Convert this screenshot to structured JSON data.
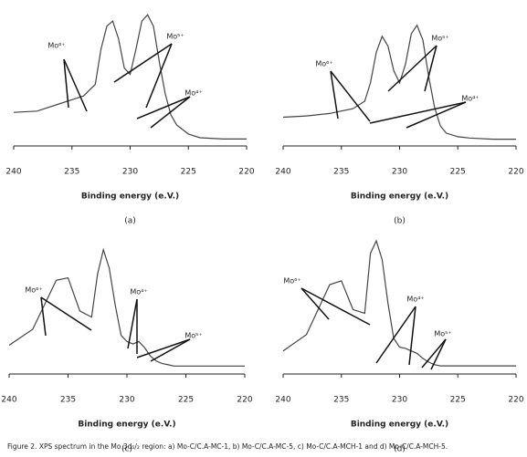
{
  "chart_data": [
    {
      "type": "line",
      "x_label": "Binding energy (e.V.)",
      "panel_label": "(a)",
      "annotations": [
        "Mo⁶⁺",
        "Mo⁵⁺",
        "Mo⁴⁺"
      ],
      "x": [
        240,
        238,
        236,
        235,
        234,
        233,
        232.5,
        232,
        231.5,
        231,
        230.5,
        230,
        229.5,
        229,
        228.5,
        228,
        227.5,
        227,
        226.5,
        226,
        225,
        224,
        222,
        220
      ],
      "values": [
        20,
        21,
        27,
        30,
        33,
        42,
        70,
        88,
        92,
        78,
        55,
        50,
        70,
        92,
        97,
        88,
        60,
        35,
        18,
        10,
        3,
        0,
        -1,
        -1
      ],
      "color": "#444444",
      "xlim": [
        240,
        220
      ],
      "ylim": [
        -5,
        100
      ],
      "xticks": [
        240,
        235,
        230,
        225,
        220
      ]
    },
    {
      "type": "line",
      "x_label": "Binding energy (e.V.)",
      "panel_label": "(b)",
      "annotations": [
        "Mo⁶⁺",
        "Mo⁵⁺",
        "Mo⁴⁺"
      ],
      "x": [
        240,
        238,
        236,
        235,
        234,
        233,
        232.5,
        232,
        231.5,
        231,
        230.5,
        230,
        229.5,
        229,
        228.5,
        228,
        227.5,
        227,
        226.5,
        226,
        225,
        224,
        222,
        220
      ],
      "values": [
        17,
        18,
        20,
        22,
        24,
        30,
        45,
        70,
        83,
        75,
        55,
        45,
        60,
        85,
        92,
        80,
        50,
        25,
        10,
        4,
        1,
        0,
        -1,
        -1
      ],
      "color": "#444444",
      "xlim": [
        240,
        220
      ],
      "ylim": [
        -5,
        100
      ],
      "xticks": [
        240,
        235,
        230,
        225,
        220
      ]
    },
    {
      "type": "line",
      "x_label": "Binding energy (e.V.)",
      "panel_label": "(c)",
      "annotations": [
        "Mo⁶⁺",
        "Mo⁴⁺",
        "Mo⁵⁺"
      ],
      "x": [
        240,
        238,
        236,
        235,
        234,
        233,
        232.5,
        232,
        231.5,
        231,
        230.5,
        230,
        229.5,
        229,
        228.5,
        228,
        227.5,
        227,
        226.5,
        226,
        225,
        224,
        222,
        220
      ],
      "values": [
        17,
        30,
        70,
        72,
        45,
        40,
        75,
        95,
        80,
        50,
        25,
        20,
        18,
        20,
        15,
        8,
        4,
        2,
        1,
        0,
        0,
        0,
        0,
        0
      ],
      "color": "#444444",
      "xlim": [
        240,
        220
      ],
      "ylim": [
        -5,
        100
      ],
      "xticks": [
        240,
        235,
        230,
        225,
        220
      ]
    },
    {
      "type": "line",
      "x_label": "Binding energy (e.V.)",
      "panel_label": "(d)",
      "annotations": [
        "Mo⁶⁺",
        "Mo⁴⁺",
        "Mo⁵⁺"
      ],
      "x": [
        240,
        238,
        236,
        235,
        234,
        233,
        232.5,
        232,
        231.5,
        231,
        230.5,
        230,
        229.5,
        229,
        228.5,
        228,
        227.5,
        227,
        226.5,
        226,
        225,
        224,
        222,
        220
      ],
      "values": [
        12,
        25,
        65,
        68,
        45,
        42,
        90,
        100,
        85,
        50,
        22,
        15,
        14,
        12,
        10,
        6,
        3,
        1,
        0,
        0,
        0,
        0,
        0,
        0
      ],
      "color": "#444444",
      "xlim": [
        240,
        220
      ],
      "ylim": [
        -5,
        100
      ],
      "xticks": [
        240,
        235,
        230,
        225,
        220
      ]
    }
  ],
  "caption": "Figure 2. XPS spectrum in the Mo 3d₅/₂ region: a) Mo-C/C.A-MC-1, b) Mo-C/C.A-MC-5, c) Mo-C/C.A-MCH-1 and d) Mo-C/C.A-MCH-5."
}
